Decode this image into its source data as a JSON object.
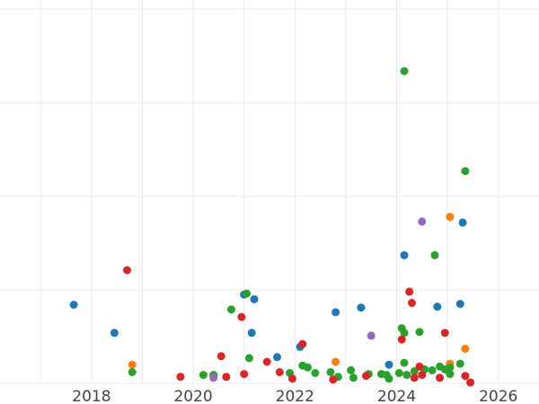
{
  "chart_data": {
    "type": "scatter",
    "title": "",
    "xlabel": "",
    "ylabel": "",
    "xlim": [
      2016.2,
      2026.8
    ],
    "ylim": [
      0,
      410
    ],
    "x_ticks": [
      2018,
      2020,
      2022,
      2024,
      2026
    ],
    "y_grid": [
      0,
      100,
      200,
      300,
      400
    ],
    "grid": true,
    "legend": "none",
    "colors": {
      "blue": "#1f77b4",
      "orange": "#ff7f0e",
      "green": "#2ca02c",
      "red": "#d62728",
      "purple": "#9467bd"
    },
    "series": [
      {
        "color": "#1f77b4",
        "points": [
          [
            2017.65,
            84
          ],
          [
            2018.45,
            54
          ],
          [
            2020.4,
            8
          ],
          [
            2021.0,
            95
          ],
          [
            2021.2,
            90
          ],
          [
            2021.15,
            54
          ],
          [
            2021.65,
            28
          ],
          [
            2022.1,
            39
          ],
          [
            2022.8,
            76
          ],
          [
            2023.3,
            81
          ],
          [
            2023.85,
            20
          ],
          [
            2024.15,
            137
          ],
          [
            2024.8,
            82
          ],
          [
            2025.3,
            172
          ],
          [
            2025.25,
            85
          ]
        ]
      },
      {
        "color": "#ff7f0e",
        "points": [
          [
            2018.8,
            20
          ],
          [
            2022.8,
            23
          ],
          [
            2025.05,
            178
          ],
          [
            2025.05,
            21
          ],
          [
            2025.35,
            37
          ]
        ]
      },
      {
        "color": "#2ca02c",
        "points": [
          [
            2018.8,
            12
          ],
          [
            2020.2,
            9
          ],
          [
            2020.4,
            9
          ],
          [
            2020.75,
            79
          ],
          [
            2021.05,
            96
          ],
          [
            2021.1,
            27
          ],
          [
            2021.9,
            11
          ],
          [
            2022.15,
            19
          ],
          [
            2022.25,
            17
          ],
          [
            2022.4,
            11
          ],
          [
            2022.7,
            12
          ],
          [
            2022.85,
            7
          ],
          [
            2023.1,
            14
          ],
          [
            2023.15,
            6
          ],
          [
            2023.45,
            10
          ],
          [
            2023.7,
            10
          ],
          [
            2023.8,
            9
          ],
          [
            2023.85,
            5
          ],
          [
            2024.1,
            59
          ],
          [
            2024.15,
            54
          ],
          [
            2024.15,
            22
          ],
          [
            2024.05,
            11
          ],
          [
            2024.2,
            9
          ],
          [
            2024.35,
            13
          ],
          [
            2024.45,
            55
          ],
          [
            2024.55,
            15
          ],
          [
            2024.75,
            137
          ],
          [
            2024.7,
            14
          ],
          [
            2024.85,
            18
          ],
          [
            2024.95,
            15
          ],
          [
            2025.05,
            10
          ],
          [
            2025.05,
            17
          ],
          [
            2025.25,
            21
          ],
          [
            2025.35,
            227
          ],
          [
            2024.15,
            334
          ]
        ]
      },
      {
        "color": "#d62728",
        "points": [
          [
            2018.7,
            121
          ],
          [
            2019.75,
            7
          ],
          [
            2020.55,
            29
          ],
          [
            2020.65,
            7
          ],
          [
            2020.95,
            71
          ],
          [
            2021.0,
            10
          ],
          [
            2021.45,
            23
          ],
          [
            2021.7,
            12
          ],
          [
            2021.95,
            5
          ],
          [
            2022.15,
            42
          ],
          [
            2022.75,
            4
          ],
          [
            2023.4,
            8
          ],
          [
            2024.1,
            47
          ],
          [
            2024.25,
            98
          ],
          [
            2024.3,
            86
          ],
          [
            2024.35,
            6
          ],
          [
            2024.45,
            18
          ],
          [
            2024.5,
            9
          ],
          [
            2024.85,
            6
          ],
          [
            2024.95,
            54
          ],
          [
            2025.35,
            8
          ],
          [
            2025.45,
            1
          ]
        ]
      },
      {
        "color": "#9467bd",
        "points": [
          [
            2020.4,
            6
          ],
          [
            2023.5,
            51
          ],
          [
            2024.5,
            173
          ]
        ]
      }
    ]
  }
}
